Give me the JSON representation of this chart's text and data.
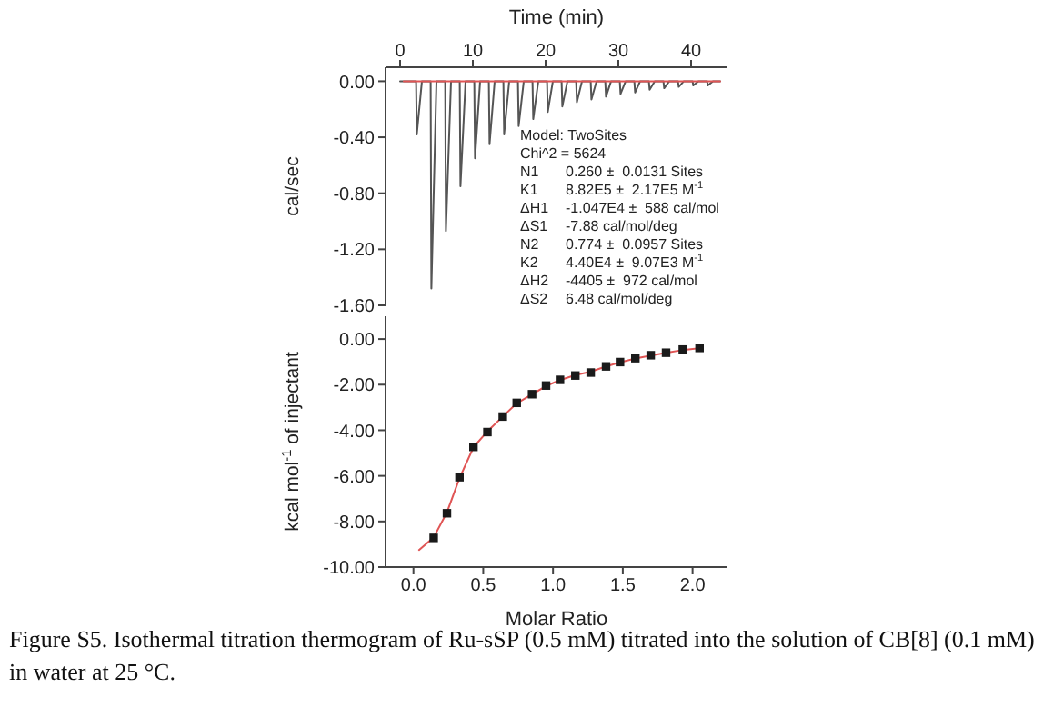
{
  "chart_data": [
    {
      "type": "line",
      "xlabel": "Time (min)",
      "ylabel": "cal/sec",
      "xlim": [
        -2,
        45
      ],
      "xticks": [
        0,
        10,
        20,
        30,
        40
      ],
      "ylim": [
        -1.6,
        0.1
      ],
      "yticks": [
        {
          "value": 0,
          "label": "0.00"
        },
        {
          "value": -0.4,
          "label": "-0.40"
        },
        {
          "value": -0.8,
          "label": "-0.80"
        },
        {
          "value": -1.2,
          "label": "-1.20"
        },
        {
          "value": -1.6,
          "label": "-1.60"
        }
      ],
      "series": [
        {
          "color": "#555555",
          "marker": "none",
          "x": [
            0,
            2.2,
            2.3,
            3,
            4.2,
            4.3,
            5,
            6.2,
            6.3,
            7,
            8.2,
            8.3,
            9,
            10.2,
            10.3,
            11,
            12.2,
            12.3,
            13,
            14.2,
            14.3,
            15,
            16.2,
            16.3,
            17,
            18.2,
            18.3,
            19,
            20.2,
            20.3,
            21,
            22.2,
            22.3,
            23,
            24.2,
            24.3,
            25,
            26.2,
            26.3,
            27,
            28.2,
            28.3,
            29,
            30.2,
            30.3,
            31,
            32.2,
            32.3,
            33,
            34.2,
            34.3,
            35,
            36.2,
            36.3,
            37,
            38.2,
            38.3,
            39,
            40.2,
            40.3,
            41,
            42.2,
            42.3,
            43,
            44
          ],
          "values": [
            0,
            0,
            -0.38,
            0,
            0,
            -1.48,
            0,
            0,
            -1.07,
            0,
            0,
            -0.75,
            0,
            0,
            -0.55,
            0,
            0,
            -0.45,
            0,
            0,
            -0.38,
            0,
            0,
            -0.32,
            0,
            0,
            -0.27,
            0,
            0,
            -0.22,
            0,
            0,
            -0.18,
            0,
            0,
            -0.15,
            0,
            0,
            -0.13,
            0,
            0,
            -0.11,
            0,
            0,
            -0.09,
            0,
            0,
            -0.08,
            0,
            0,
            -0.06,
            0,
            0,
            -0.05,
            0,
            0,
            -0.04,
            0,
            0,
            -0.03,
            0,
            0,
            -0.03,
            0,
            0
          ]
        },
        {
          "color": "#e05555",
          "marker": "none",
          "x": [
            0.5,
            44
          ],
          "values": [
            0,
            0
          ]
        }
      ],
      "annotations": [
        "Model: TwoSites",
        "Chi^2 = 5624",
        "N1 0.260 ±  0.0131 Sites",
        "K1 8.82E5 ±  2.17E5 M$^{-1}$",
        "ΔH1 -1.047E4 ±  588 cal/mol",
        "ΔS1 -7.88 cal/mol/deg",
        "N2 0.774 ±  0.0957 Sites",
        "K2 4.40E4 ±  9.07E3 M$^{-1}$",
        "ΔH2 -4405 ±  972 cal/mol",
        "ΔS2 6.48 cal/mol/deg"
      ]
    },
    {
      "type": "scatter",
      "xlabel": "Molar Ratio",
      "ylabel": "kcal mol$^{-1}$ of injectant",
      "xlim": [
        -0.2,
        2.25
      ],
      "xticks": [
        {
          "value": 0,
          "label": "0.0"
        },
        {
          "value": 0.5,
          "label": "0.5"
        },
        {
          "value": 1,
          "label": "1.0"
        },
        {
          "value": 1.5,
          "label": "1.5"
        },
        {
          "value": 2,
          "label": "2.0"
        }
      ],
      "ylim": [
        -10,
        1
      ],
      "yticks": [
        {
          "value": 0,
          "label": "0.00"
        },
        {
          "value": -2,
          "label": "-2.00"
        },
        {
          "value": -4,
          "label": "-4.00"
        },
        {
          "value": -6,
          "label": "-6.00"
        },
        {
          "value": -8,
          "label": "-8.00"
        },
        {
          "value": -10,
          "label": "-10.00"
        }
      ],
      "series": [
        {
          "color": "#1a1a1a",
          "marker": "square",
          "x": [
            0.145,
            0.24,
            0.33,
            0.43,
            0.53,
            0.64,
            0.74,
            0.85,
            0.95,
            1.05,
            1.16,
            1.27,
            1.38,
            1.48,
            1.59,
            1.7,
            1.81,
            1.93,
            2.05
          ],
          "values": [
            -8.72,
            -7.64,
            -6.06,
            -4.73,
            -4.08,
            -3.4,
            -2.8,
            -2.42,
            -2.04,
            -1.79,
            -1.6,
            -1.47,
            -1.2,
            -1.01,
            -0.84,
            -0.71,
            -0.6,
            -0.46,
            -0.39
          ]
        },
        {
          "type": "line",
          "color": "#e05555",
          "marker": "none",
          "x": [
            0.04,
            0.145,
            0.24,
            0.33,
            0.43,
            0.53,
            0.64,
            0.74,
            0.85,
            0.95,
            1.05,
            1.16,
            1.27,
            1.38,
            1.48,
            1.59,
            1.7,
            1.81,
            1.93,
            2.05
          ],
          "values": [
            -9.25,
            -8.7,
            -7.6,
            -6.1,
            -4.75,
            -4.05,
            -3.4,
            -2.82,
            -2.42,
            -2.06,
            -1.8,
            -1.58,
            -1.43,
            -1.2,
            -1.02,
            -0.85,
            -0.72,
            -0.6,
            -0.48,
            -0.4
          ]
        }
      ],
      "annotations": [
        "Figure S5. Isothermal titration thermogram of Ru-sSP (0.5 mM) titrated into the solution of CB[8] (0.1 mM) in water at 25 °C."
      ]
    }
  ]
}
